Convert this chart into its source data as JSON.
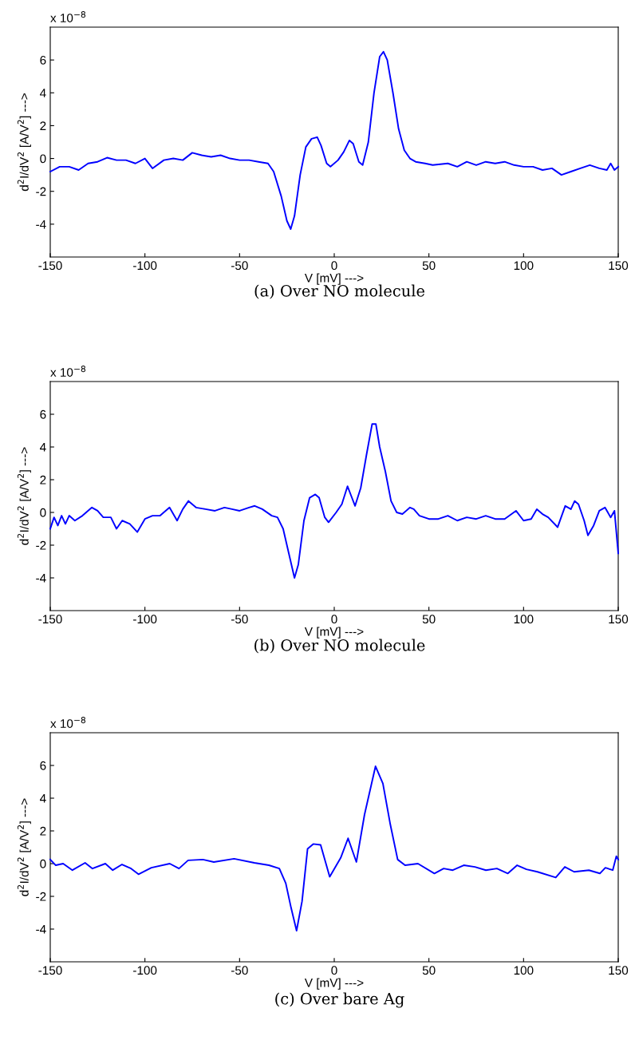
{
  "chart_data": [
    {
      "type": "line",
      "title": "(a) Over NO molecule",
      "xlabel": "V [mV] --->",
      "ylabel": "d$^{2}$I/dV$^{2}$ [A/V$^{2}$] --->",
      "annotations": [
        "x 10$^{−8}$"
      ],
      "xlim": [
        -150,
        150
      ],
      "ylim": [
        -6,
        8
      ],
      "xticks": [
        -150,
        -100,
        -50,
        0,
        50,
        100,
        150
      ],
      "yticks": [
        -4,
        -2,
        0,
        2,
        4,
        6
      ],
      "x": [
        -150,
        -145,
        -140,
        -135,
        -130,
        -125,
        -120,
        -115,
        -110,
        -105,
        -100,
        -96,
        -90,
        -85,
        -80,
        -75,
        -70,
        -65,
        -60,
        -55,
        -50,
        -45,
        -40,
        -35,
        -32,
        -28,
        -25,
        -23,
        -21,
        -18,
        -15,
        -12,
        -9,
        -7,
        -4,
        -2,
        2,
        5,
        8,
        10,
        13,
        15,
        18,
        21,
        24,
        26,
        28,
        31,
        34,
        37,
        40,
        43,
        48,
        52,
        60,
        65,
        70,
        75,
        80,
        85,
        90,
        95,
        100,
        105,
        110,
        115,
        120,
        125,
        130,
        135,
        140,
        144,
        146,
        148,
        150
      ],
      "series": [
        {
          "color": "#0000ff",
          "values": [
            -0.8,
            -0.5,
            -0.5,
            -0.7,
            -0.3,
            -0.2,
            0.05,
            -0.1,
            -0.1,
            -0.3,
            0.0,
            -0.6,
            -0.1,
            0.0,
            -0.1,
            0.35,
            0.2,
            0.1,
            0.2,
            0.0,
            -0.1,
            -0.1,
            -0.2,
            -0.3,
            -0.8,
            -2.3,
            -3.8,
            -4.3,
            -3.5,
            -1.0,
            0.7,
            1.2,
            1.3,
            0.8,
            -0.3,
            -0.5,
            -0.1,
            0.4,
            1.1,
            0.9,
            -0.2,
            -0.4,
            1.0,
            4.0,
            6.2,
            6.5,
            6.0,
            4.0,
            1.8,
            0.5,
            0.0,
            -0.2,
            -0.3,
            -0.4,
            -0.3,
            -0.5,
            -0.2,
            -0.4,
            -0.2,
            -0.3,
            -0.2,
            -0.4,
            -0.5,
            -0.5,
            -0.7,
            -0.6,
            -1.0,
            -0.8,
            -0.6,
            -0.4,
            -0.6,
            -0.7,
            -0.3,
            -0.7,
            -0.5
          ]
        }
      ]
    },
    {
      "type": "line",
      "title": "(b) Over NO molecule",
      "xlabel": "V [mV] --->",
      "ylabel": "d$^{2}$I/dV$^{2}$ [A/V$^{2}$] --->",
      "annotations": [
        "x 10$^{−8}$"
      ],
      "xlim": [
        -150,
        150
      ],
      "ylim": [
        -6,
        8
      ],
      "xticks": [
        -150,
        -100,
        -50,
        0,
        50,
        100,
        150
      ],
      "yticks": [
        -4,
        -2,
        0,
        2,
        4,
        6
      ],
      "x": [
        -150,
        -148,
        -146,
        -144,
        -142,
        -140,
        -137,
        -133,
        -128,
        -125,
        -122,
        -118,
        -115,
        -112,
        -108,
        -104,
        -100,
        -96,
        -92,
        -87,
        -83,
        -80,
        -77,
        -73,
        -68,
        -63,
        -58,
        -54,
        -50,
        -45,
        -42,
        -38,
        -33,
        -30,
        -27,
        -24,
        -21,
        -19,
        -16,
        -13,
        -10,
        -8,
        -5,
        -3,
        1,
        4,
        7,
        9,
        11,
        14,
        17,
        20,
        22,
        24,
        27,
        30,
        33,
        36,
        40,
        42,
        45,
        50,
        55,
        60,
        65,
        70,
        75,
        80,
        85,
        90,
        96,
        100,
        104,
        107,
        110,
        113,
        118,
        122,
        125,
        127,
        129,
        132,
        134,
        137,
        140,
        143,
        146,
        148,
        150
      ],
      "series": [
        {
          "color": "#0000ff",
          "values": [
            -1.0,
            -0.3,
            -0.8,
            -0.2,
            -0.7,
            -0.2,
            -0.5,
            -0.2,
            0.3,
            0.1,
            -0.3,
            -0.3,
            -1.0,
            -0.5,
            -0.7,
            -1.2,
            -0.4,
            -0.2,
            -0.2,
            0.3,
            -0.5,
            0.2,
            0.7,
            0.3,
            0.2,
            0.1,
            0.3,
            0.2,
            0.1,
            0.3,
            0.4,
            0.2,
            -0.2,
            -0.3,
            -1.0,
            -2.5,
            -4.0,
            -3.2,
            -0.5,
            0.9,
            1.1,
            0.9,
            -0.3,
            -0.6,
            0.0,
            0.5,
            1.6,
            1.0,
            0.4,
            1.5,
            3.5,
            5.4,
            5.4,
            4.0,
            2.5,
            0.7,
            0.0,
            -0.1,
            0.3,
            0.2,
            -0.2,
            -0.4,
            -0.4,
            -0.2,
            -0.5,
            -0.3,
            -0.4,
            -0.2,
            -0.4,
            -0.4,
            0.1,
            -0.5,
            -0.4,
            0.2,
            -0.1,
            -0.3,
            -0.9,
            0.4,
            0.2,
            0.7,
            0.5,
            -0.5,
            -1.4,
            -0.8,
            0.1,
            0.3,
            -0.3,
            0.1,
            -2.5
          ]
        }
      ]
    },
    {
      "type": "line",
      "title": "(c) Over bare Ag",
      "xlabel": "V [mV] --->",
      "ylabel": "d$^{2}$I/dV$^{2}$ [A/V$^{2}$] --->",
      "annotations": [
        "x 10$^{−8}$"
      ],
      "xlim": [
        -150,
        150
      ],
      "ylim": [
        -6,
        8
      ],
      "xticks": [
        -150,
        -100,
        -50,
        0,
        50,
        100,
        150
      ],
      "yticks": [
        -4,
        -2,
        0,
        2,
        4,
        6
      ],
      "x": [
        -150,
        -147.1,
        -143.2,
        -138.3,
        -131.6,
        -127.7,
        -120.9,
        -117.0,
        -112.1,
        -107.3,
        -103.4,
        -96.6,
        -86.9,
        -82.0,
        -77.2,
        -69.4,
        -63.6,
        -52.9,
        -42.2,
        -34.5,
        -29.0,
        -25.6,
        -22.8,
        -19.9,
        -17.0,
        -14.1,
        -11.1,
        -7.2,
        -2.4,
        3.4,
        7.3,
        11.7,
        16.0,
        21.8,
        25.7,
        29.6,
        33.5,
        37.4,
        44.2,
        52.9,
        57.8,
        62.6,
        68.4,
        74.3,
        80.1,
        85.9,
        91.7,
        96.6,
        101.5,
        107.3,
        117.0,
        121.8,
        126.7,
        134.5,
        140.3,
        143.2,
        147.1,
        149.0,
        150
      ],
      "series": [
        {
          "color": "#0000ff",
          "values": [
            0.25,
            -0.1,
            0.0,
            -0.4,
            0.05,
            -0.3,
            0.0,
            -0.4,
            -0.05,
            -0.3,
            -0.65,
            -0.25,
            0.0,
            -0.3,
            0.2,
            0.25,
            0.1,
            0.3,
            0.05,
            -0.1,
            -0.3,
            -1.2,
            -2.7,
            -4.1,
            -2.3,
            0.9,
            1.2,
            1.15,
            -0.8,
            0.35,
            1.55,
            0.1,
            3.0,
            5.95,
            4.9,
            2.4,
            0.25,
            -0.1,
            0.0,
            -0.6,
            -0.3,
            -0.4,
            -0.1,
            -0.2,
            -0.4,
            -0.3,
            -0.6,
            -0.1,
            -0.35,
            -0.5,
            -0.85,
            -0.2,
            -0.5,
            -0.4,
            -0.6,
            -0.25,
            -0.4,
            0.45,
            0.25
          ]
        }
      ]
    }
  ]
}
